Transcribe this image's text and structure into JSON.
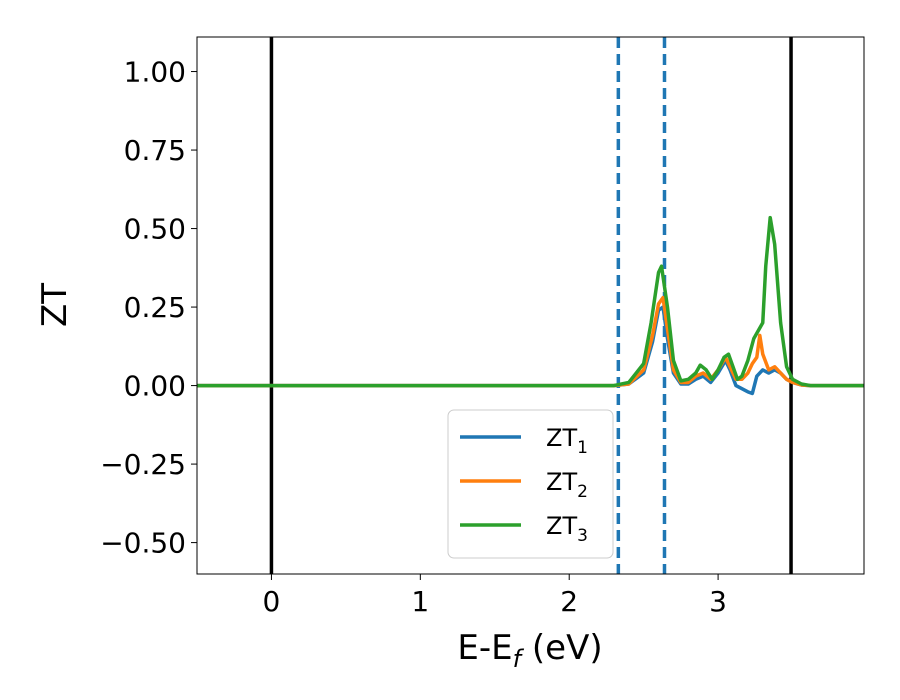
{
  "chart_data": {
    "type": "line",
    "xlabel_main": "E-E",
    "xlabel_sub": "f",
    "xlabel_unit": " (eV)",
    "ylabel": "ZT",
    "xlim": [
      -0.5,
      3.98
    ],
    "ylim": [
      -0.6,
      1.11
    ],
    "xticks": [
      0,
      1,
      2,
      3
    ],
    "xtick_labels": [
      "0",
      "1",
      "2",
      "3"
    ],
    "yticks": [
      1.0,
      0.75,
      0.5,
      0.25,
      0.0,
      -0.25,
      -0.5
    ],
    "ytick_labels": [
      "1.00",
      "0.75",
      "0.50",
      "0.25",
      "0.00",
      "−0.25",
      "−0.50"
    ],
    "grid": false,
    "legend_position": "lower-center",
    "vlines": [
      {
        "x": 0.0,
        "color": "#000000",
        "style": "solid"
      },
      {
        "x": 3.49,
        "color": "#000000",
        "style": "solid"
      },
      {
        "x": 2.33,
        "color": "#1f77b4",
        "style": "dashed"
      },
      {
        "x": 2.64,
        "color": "#1f77b4",
        "style": "dashed"
      }
    ],
    "series": [
      {
        "name": "ZT",
        "name_sub": "1",
        "color": "#1f77b4",
        "x": [
          -0.5,
          2.3,
          2.4,
          2.5,
          2.56,
          2.6,
          2.63,
          2.66,
          2.7,
          2.75,
          2.8,
          2.85,
          2.9,
          2.95,
          3.0,
          3.05,
          3.08,
          3.12,
          3.16,
          3.2,
          3.23,
          3.26,
          3.3,
          3.34,
          3.38,
          3.42,
          3.46,
          3.5,
          3.56,
          3.62,
          3.98
        ],
        "y": [
          0,
          0,
          0.005,
          0.04,
          0.14,
          0.24,
          0.25,
          0.15,
          0.04,
          0.005,
          0.005,
          0.02,
          0.03,
          0.01,
          0.04,
          0.08,
          0.05,
          0.0,
          -0.01,
          -0.02,
          -0.025,
          0.03,
          0.05,
          0.04,
          0.05,
          0.04,
          0.02,
          0.01,
          0.002,
          0.0,
          0.0
        ]
      },
      {
        "name": "ZT",
        "name_sub": "2",
        "color": "#ff7f0e",
        "x": [
          -0.5,
          2.3,
          2.4,
          2.5,
          2.56,
          2.6,
          2.63,
          2.66,
          2.7,
          2.75,
          2.8,
          2.85,
          2.9,
          2.95,
          3.0,
          3.05,
          3.08,
          3.12,
          3.16,
          3.2,
          3.23,
          3.26,
          3.28,
          3.3,
          3.34,
          3.38,
          3.42,
          3.46,
          3.5,
          3.56,
          3.62,
          3.98
        ],
        "y": [
          0,
          0,
          0.005,
          0.05,
          0.16,
          0.26,
          0.28,
          0.18,
          0.05,
          0.01,
          0.01,
          0.03,
          0.04,
          0.02,
          0.05,
          0.09,
          0.06,
          0.02,
          0.02,
          0.04,
          0.07,
          0.09,
          0.16,
          0.1,
          0.05,
          0.06,
          0.04,
          0.02,
          0.01,
          0.002,
          0.0,
          0.0
        ]
      },
      {
        "name": "ZT",
        "name_sub": "3",
        "color": "#2ca02c",
        "x": [
          -0.5,
          2.3,
          2.4,
          2.5,
          2.55,
          2.6,
          2.62,
          2.66,
          2.7,
          2.75,
          2.8,
          2.85,
          2.88,
          2.92,
          2.96,
          3.0,
          3.04,
          3.07,
          3.1,
          3.13,
          3.16,
          3.2,
          3.24,
          3.27,
          3.3,
          3.32,
          3.35,
          3.38,
          3.42,
          3.46,
          3.5,
          3.56,
          3.62,
          3.98
        ],
        "y": [
          0,
          0,
          0.01,
          0.07,
          0.2,
          0.36,
          0.38,
          0.25,
          0.08,
          0.015,
          0.02,
          0.04,
          0.065,
          0.05,
          0.02,
          0.05,
          0.09,
          0.1,
          0.06,
          0.02,
          0.03,
          0.08,
          0.15,
          0.175,
          0.2,
          0.38,
          0.535,
          0.45,
          0.2,
          0.06,
          0.02,
          0.005,
          0.0,
          0.0
        ]
      }
    ]
  }
}
